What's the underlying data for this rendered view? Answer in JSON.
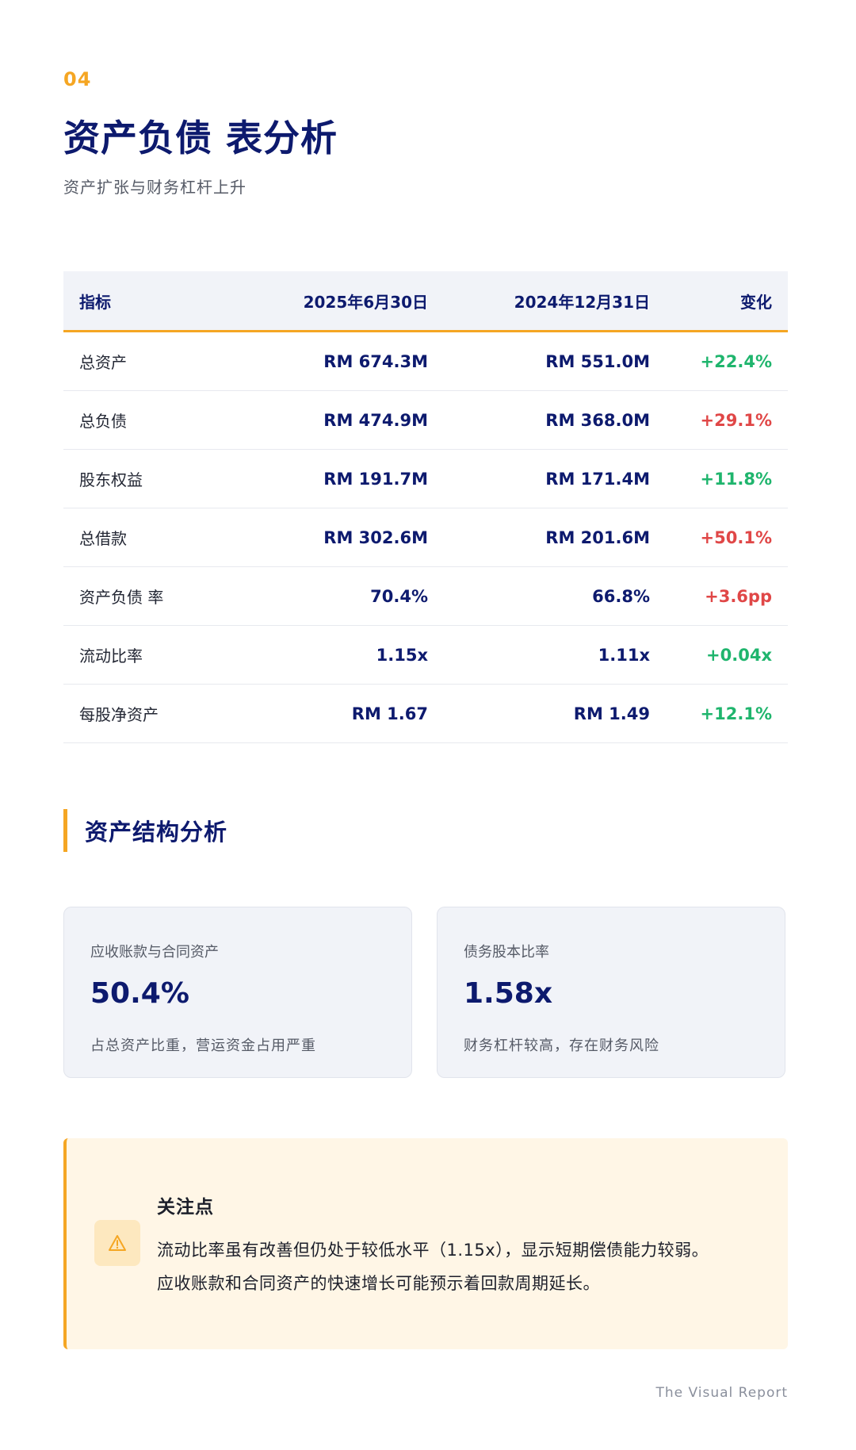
{
  "header": {
    "section_number": "04",
    "title": "资产负债 表分析",
    "subtitle": "资产扩张与财务杠杆上升"
  },
  "table": {
    "columns": [
      "指标",
      "2025年6月30日",
      "2024年12月31日",
      "变化"
    ],
    "rows": [
      {
        "label": "总资产",
        "current": "RM 674.3M",
        "previous": "RM 551.0M",
        "change": "+22.4%",
        "trend": "positive"
      },
      {
        "label": "总负债",
        "current": "RM 474.9M",
        "previous": "RM 368.0M",
        "change": "+29.1%",
        "trend": "negative"
      },
      {
        "label": "股东权益",
        "current": "RM 191.7M",
        "previous": "RM 171.4M",
        "change": "+11.8%",
        "trend": "positive"
      },
      {
        "label": "总借款",
        "current": "RM 302.6M",
        "previous": "RM 201.6M",
        "change": "+50.1%",
        "trend": "negative"
      },
      {
        "label": "资产负债 率",
        "current": "70.4%",
        "previous": "66.8%",
        "change": "+3.6pp",
        "trend": "negative"
      },
      {
        "label": "流动比率",
        "current": "1.15x",
        "previous": "1.11x",
        "change": "+0.04x",
        "trend": "positive"
      },
      {
        "label": "每股净资产",
        "current": "RM 1.67",
        "previous": "RM 1.49",
        "change": "+12.1%",
        "trend": "positive"
      }
    ]
  },
  "structure": {
    "heading": "资产结构分析",
    "cards": [
      {
        "label": "应收账款与合同资产",
        "value": "50.4%",
        "note": "占总资产比重，营运资金占用严重"
      },
      {
        "label": "债务股本比率",
        "value": "1.58x",
        "note": "财务杠杆较高，存在财务风险"
      }
    ]
  },
  "callout": {
    "icon": "warning-icon",
    "title": "关注点",
    "lines": [
      "流动比率虽有改善但仍处于较低水平（1.15x），显示短期偿债能力较弱。",
      "应收账款和合同资产的快速增长可能预示着回款周期延长。"
    ]
  },
  "footer": {
    "brand": "The Visual Report"
  },
  "colors": {
    "accent": "#f5a623",
    "primary": "#0d1a6e",
    "positive": "#1fb56d",
    "negative": "#e04747"
  }
}
